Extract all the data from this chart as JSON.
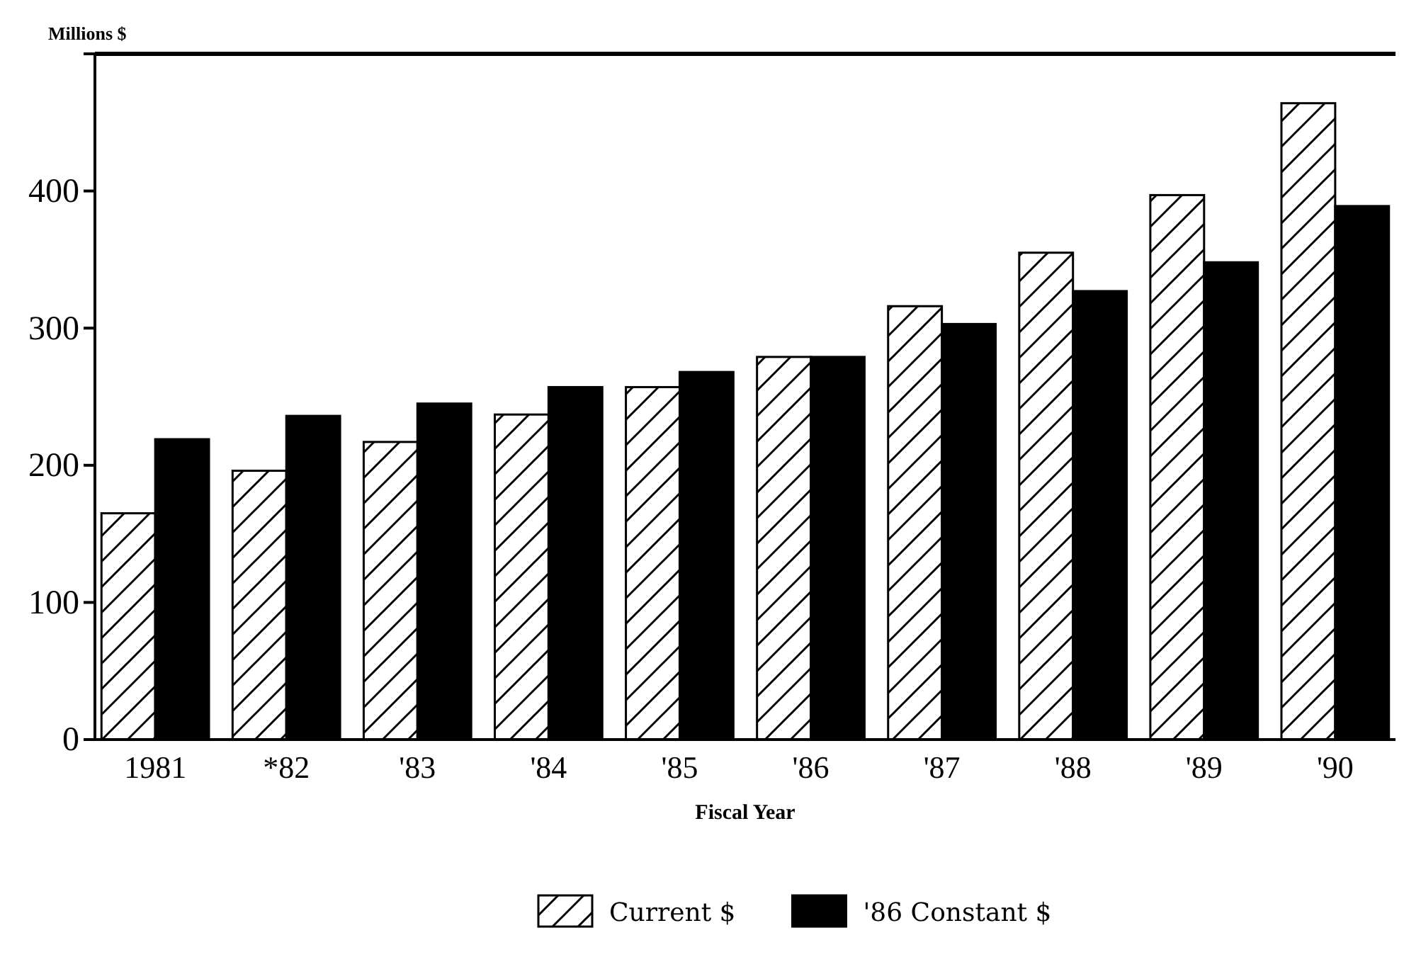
{
  "chart_data": {
    "type": "bar",
    "ylabel": "Millions $",
    "xlabel": "Fiscal Year",
    "categories": [
      "1981",
      "*82",
      "'83",
      "'84",
      "'85",
      "'86",
      "'87",
      "'88",
      "'89",
      "'90"
    ],
    "series": [
      {
        "name": "Current $",
        "color": "#000000",
        "values": [
          165,
          196,
          217,
          237,
          257,
          279,
          316,
          355,
          397,
          464
        ]
      },
      {
        "name": "'86 Constant $",
        "color": "#000000",
        "values": [
          219,
          236,
          245,
          257,
          268,
          279,
          303,
          327,
          348,
          389
        ]
      }
    ],
    "ylim": [
      0,
      500
    ],
    "yticks": [
      0,
      100,
      200,
      300,
      400
    ],
    "grid": false,
    "legend": "bottom"
  }
}
